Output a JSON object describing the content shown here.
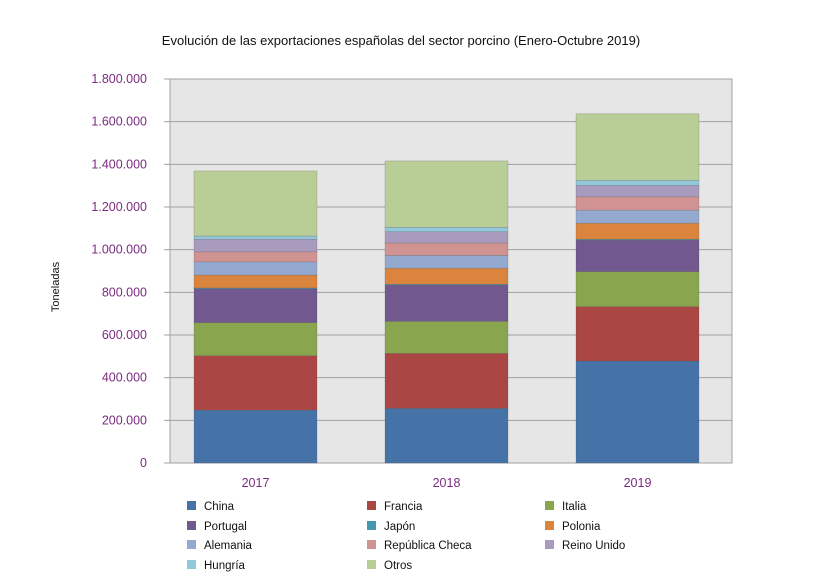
{
  "chart_data": {
    "type": "bar",
    "stacked": true,
    "title": "Evolución de las exportaciones españolas del sector porcino (Enero-Octubre 2019)",
    "xlabel": "",
    "ylabel": "Toneladas",
    "ylim": [
      0,
      1800000
    ],
    "yticks": [
      0,
      200000,
      400000,
      600000,
      800000,
      1000000,
      1200000,
      1400000,
      1600000,
      1800000
    ],
    "ytick_labels": [
      "0",
      "200.000",
      "400.000",
      "600.000",
      "800.000",
      "1.000.000",
      "1.200.000",
      "1.400.000",
      "1.600.000",
      "1.800.000"
    ],
    "categories": [
      "2017",
      "2018",
      "2019"
    ],
    "grid": true,
    "legend_position": "bottom",
    "series": [
      {
        "name": "China",
        "color": "#4572a7",
        "values": [
          248000,
          256000,
          478000
        ]
      },
      {
        "name": "Francia",
        "color": "#aa4643",
        "values": [
          255000,
          258000,
          255000
        ]
      },
      {
        "name": "Italia",
        "color": "#89a54e",
        "values": [
          155000,
          150000,
          164000
        ]
      },
      {
        "name": "Portugal",
        "color": "#71588f",
        "values": [
          159000,
          170000,
          148000
        ]
      },
      {
        "name": "Japón",
        "color": "#4198af",
        "values": [
          4000,
          4000,
          4000
        ]
      },
      {
        "name": "Polonia",
        "color": "#db843d",
        "values": [
          60000,
          75000,
          75000
        ]
      },
      {
        "name": "Alemania",
        "color": "#93a9cf",
        "values": [
          62000,
          60000,
          61000
        ]
      },
      {
        "name": "República Checa",
        "color": "#d19392",
        "values": [
          47000,
          58000,
          63000
        ]
      },
      {
        "name": "Reino Unido",
        "color": "#a99bbd",
        "values": [
          59000,
          53000,
          53000
        ]
      },
      {
        "name": "Hungría",
        "color": "#92c8da",
        "values": [
          15000,
          21000,
          24000
        ]
      },
      {
        "name": "Otros",
        "color": "#b9cd96",
        "values": [
          305000,
          311000,
          312000
        ]
      }
    ],
    "legend_order": [
      "China",
      "Francia",
      "Italia",
      "Portugal",
      "Japón",
      "Polonia",
      "Alemania",
      "República Checa",
      "Reino Unido",
      "Hungría",
      "Otros"
    ],
    "colors": {
      "plot_background": "#e6e6e6",
      "tick_label": "#7d2a82"
    }
  }
}
